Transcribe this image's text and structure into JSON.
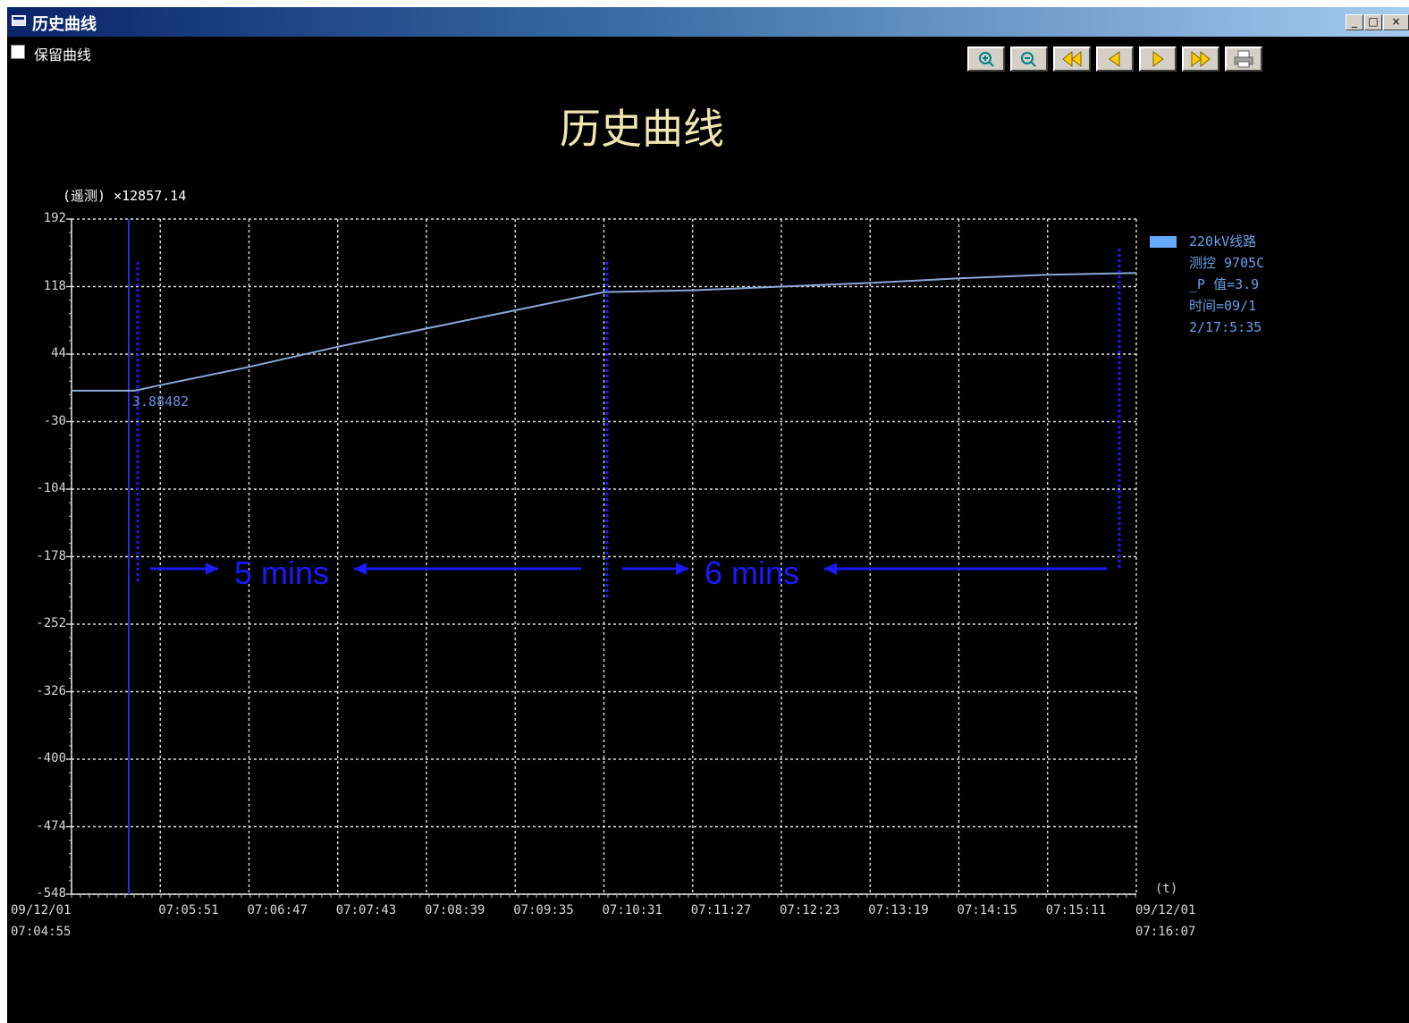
{
  "window": {
    "title": "历史曲线",
    "buttons": [
      "_",
      "□",
      "×"
    ]
  },
  "keep_curve": {
    "label": "保留曲线",
    "checked": false
  },
  "toolbar": {
    "buttons": [
      {
        "name": "zoom-in",
        "icon": "zoom-in-icon"
      },
      {
        "name": "zoom-out",
        "icon": "zoom-out-icon"
      },
      {
        "name": "first",
        "icon": "double-left-icon"
      },
      {
        "name": "prev",
        "icon": "left-icon"
      },
      {
        "name": "next",
        "icon": "right-icon"
      },
      {
        "name": "last",
        "icon": "double-right-icon"
      },
      {
        "name": "print",
        "icon": "printer-icon"
      }
    ]
  },
  "chart_data": {
    "type": "line",
    "title": "历史曲线",
    "ylabel_unit": "(遥测) ×12857.14",
    "xlabel": "(t)",
    "ylim": [
      -548,
      192
    ],
    "yticks": [
      "192",
      "118",
      "44",
      "-30",
      "-104",
      "-178",
      "-252",
      "-326",
      "-400",
      "-474",
      "-548"
    ],
    "x_start": {
      "date": "09/12/01",
      "time": "07:04:55"
    },
    "x_end": {
      "date": "09/12/01",
      "time": "07:16:07"
    },
    "xticks": [
      "07:05:51",
      "07:06:47",
      "07:07:43",
      "07:08:39",
      "07:09:35",
      "07:10:31",
      "07:11:27",
      "07:12:23",
      "07:13:19",
      "07:14:15",
      "07:15:11"
    ],
    "grid": true,
    "legend_position": "right",
    "series": [
      {
        "name": "220kV线路 测控 9705C_P 值=3.9 时间=09/12/17:5:35",
        "color": "#66aaff",
        "points": [
          [
            "07:04:55",
            3.9
          ],
          [
            "07:05:35",
            3.9
          ],
          [
            "07:05:51",
            10
          ],
          [
            "07:06:47",
            30
          ],
          [
            "07:07:43",
            52
          ],
          [
            "07:08:39",
            72
          ],
          [
            "07:09:35",
            92
          ],
          [
            "07:10:31",
            112
          ],
          [
            "07:11:27",
            114
          ],
          [
            "07:12:23",
            118
          ],
          [
            "07:13:19",
            122
          ],
          [
            "07:14:15",
            127
          ],
          [
            "07:15:11",
            131
          ],
          [
            "07:16:07",
            133
          ]
        ]
      }
    ],
    "cursor_value": "3.88482"
  },
  "annotations": {
    "span1": "5 mins",
    "span2": "6 mins",
    "color": "#1a1aff"
  }
}
